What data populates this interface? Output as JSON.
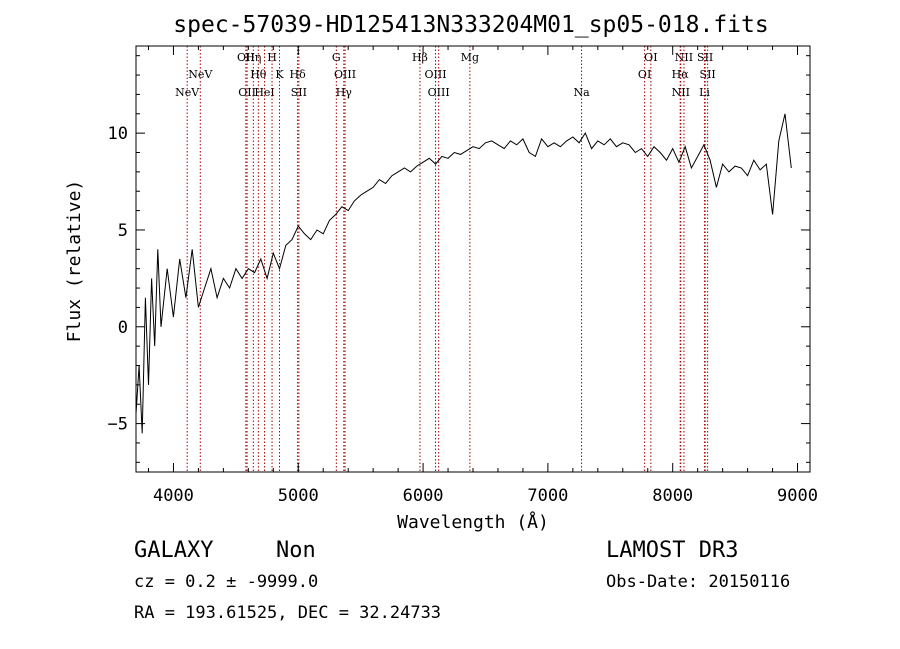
{
  "chart_data": {
    "type": "line",
    "title": "spec-57039-HD125413N333204M01_sp05-018.fits",
    "xlabel": "Wavelength (Å)",
    "ylabel": "Flux (relative)",
    "xlim": [
      3700,
      9100
    ],
    "ylim": [
      -7.5,
      14.5
    ],
    "x_ticks": [
      4000,
      5000,
      6000,
      7000,
      8000,
      9000
    ],
    "x_tick_labels": [
      "4000",
      "5000",
      "6000",
      "7000",
      "8000",
      "9000"
    ],
    "y_ticks": [
      -5,
      0,
      5,
      10
    ],
    "y_tick_labels": [
      "−5",
      "0",
      "5",
      "10"
    ],
    "grid": false,
    "line_color": "#000000",
    "marker_color": "#aa0000",
    "series": [
      {
        "x": [
          3700,
          3725,
          3750,
          3775,
          3800,
          3825,
          3850,
          3875,
          3900,
          3950,
          4000,
          4050,
          4100,
          4150,
          4200,
          4250,
          4300,
          4350,
          4400,
          4450,
          4500,
          4550,
          4600,
          4650,
          4700,
          4750,
          4800,
          4850,
          4900,
          4950,
          5000,
          5050,
          5100,
          5150,
          5200,
          5250,
          5300,
          5350,
          5400,
          5450,
          5500,
          5550,
          5600,
          5650,
          5700,
          5750,
          5800,
          5850,
          5900,
          5950,
          6000,
          6050,
          6100,
          6150,
          6200,
          6250,
          6300,
          6350,
          6400,
          6450,
          6500,
          6550,
          6600,
          6650,
          6700,
          6750,
          6800,
          6850,
          6900,
          6950,
          7000,
          7050,
          7100,
          7150,
          7200,
          7250,
          7300,
          7350,
          7400,
          7450,
          7500,
          7550,
          7600,
          7650,
          7700,
          7750,
          7800,
          7850,
          7900,
          7950,
          8000,
          8050,
          8100,
          8150,
          8200,
          8250,
          8300,
          8350,
          8400,
          8450,
          8500,
          8550,
          8600,
          8650,
          8700,
          8750,
          8800,
          8850,
          8900,
          8950
        ],
        "y": [
          -4.5,
          -2,
          -5.5,
          1.5,
          -3,
          2.5,
          -1,
          4,
          0,
          3,
          0.5,
          3.5,
          1.5,
          4,
          1,
          2,
          3,
          1.5,
          2.5,
          2,
          3,
          2.5,
          3,
          2.8,
          3.5,
          2.5,
          3.8,
          3,
          4.2,
          4.5,
          5.2,
          4.8,
          4.5,
          5,
          4.8,
          5.5,
          5.8,
          6.2,
          6,
          6.5,
          6.8,
          7,
          7.2,
          7.6,
          7.4,
          7.8,
          8,
          8.2,
          8,
          8.3,
          8.5,
          8.7,
          8.4,
          8.8,
          8.7,
          9,
          8.9,
          9.1,
          9.3,
          9.2,
          9.5,
          9.6,
          9.4,
          9.2,
          9.6,
          9.4,
          9.7,
          9,
          8.8,
          9.7,
          9.3,
          9.5,
          9.3,
          9.6,
          9.8,
          9.5,
          10,
          9.2,
          9.6,
          9.4,
          9.7,
          9.3,
          9.5,
          9.4,
          9,
          9.2,
          8.8,
          9.3,
          9,
          8.6,
          9.2,
          8.5,
          9.3,
          8.2,
          8.8,
          9.4,
          8.6,
          7.2,
          8.4,
          8,
          8.3,
          8.2,
          7.8,
          8.6,
          8.1,
          8.4,
          5.8,
          9.6,
          11,
          8.2
        ]
      }
    ],
    "line_markers": [
      {
        "label": "NeV",
        "x": 4110,
        "row": 2
      },
      {
        "label": "NeV",
        "x": 4215,
        "row": 1
      },
      {
        "label": "OII",
        "x": 4580,
        "row": 0
      },
      {
        "label": "OII",
        "x": 4590,
        "row": 2
      },
      {
        "label": "Hη",
        "x": 4640,
        "row": 0
      },
      {
        "label": "Hθ",
        "x": 4680,
        "row": 1
      },
      {
        "label": "HeI",
        "x": 4730,
        "row": 2
      },
      {
        "label": "H",
        "x": 4790,
        "row": 0
      },
      {
        "label": "K",
        "x": 4850,
        "row": 1
      },
      {
        "label": "Hδ",
        "x": 4995,
        "row": 1
      },
      {
        "label": "SII",
        "x": 5005,
        "row": 2
      },
      {
        "label": "G",
        "x": 5305,
        "row": 0
      },
      {
        "label": "OIII",
        "x": 5375,
        "row": 1
      },
      {
        "label": "Hγ",
        "x": 5365,
        "row": 2
      },
      {
        "label": "Hβ",
        "x": 5975,
        "row": 0
      },
      {
        "label": "OIII",
        "x": 6100,
        "row": 1
      },
      {
        "label": "OIII",
        "x": 6125,
        "row": 2
      },
      {
        "label": "Mg",
        "x": 6375,
        "row": 0
      },
      {
        "label": "Na",
        "x": 7270,
        "row": 2
      },
      {
        "label": "OI",
        "x": 7825,
        "row": 0
      },
      {
        "label": "OI",
        "x": 7775,
        "row": 1
      },
      {
        "label": "NII",
        "x": 8090,
        "row": 0
      },
      {
        "label": "Hα",
        "x": 8060,
        "row": 1
      },
      {
        "label": "NII",
        "x": 8065,
        "row": 2
      },
      {
        "label": "SII",
        "x": 8260,
        "row": 0
      },
      {
        "label": "SII",
        "x": 8280,
        "row": 1
      },
      {
        "label": "Li",
        "x": 8255,
        "row": 2
      }
    ]
  },
  "info": {
    "object_class": "GALAXY",
    "subclass": "Non",
    "survey": "LAMOST DR3",
    "redshift": "cz = 0.2 ± -9999.0",
    "obs_date": "Obs-Date: 20150116",
    "coords": "RA = 193.61525, DEC =  32.24733"
  }
}
